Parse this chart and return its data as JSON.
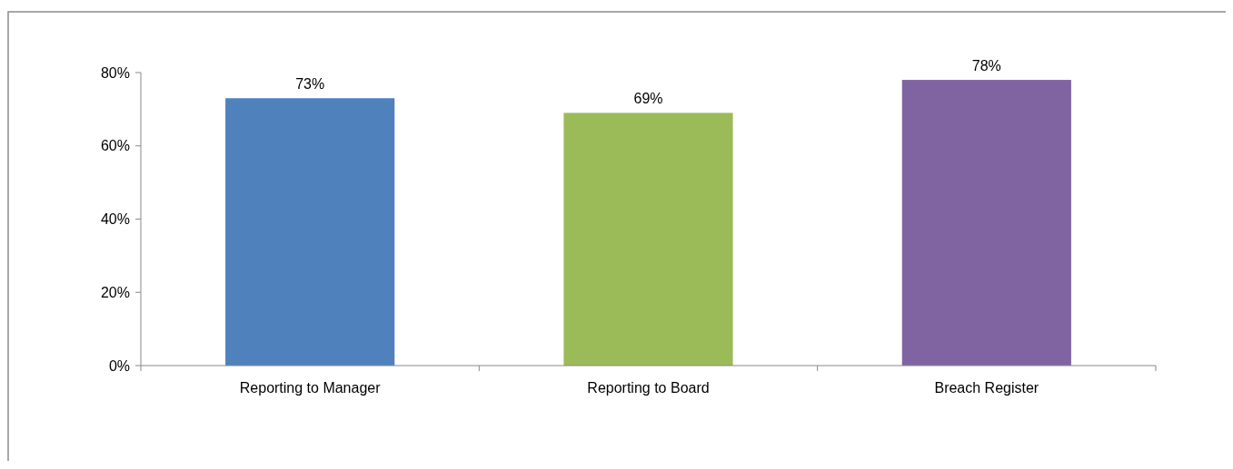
{
  "chart_data": {
    "type": "bar",
    "categories": [
      "Reporting to Manager",
      "Reporting to Board",
      "Breach Register"
    ],
    "values": [
      73,
      69,
      78
    ],
    "colors": [
      "#4f81bd",
      "#9bbb59",
      "#8064a2"
    ],
    "value_labels": [
      "73%",
      "69%",
      "78%"
    ],
    "ylim": [
      0,
      80
    ],
    "yticks": [
      {
        "value": 0,
        "label": "0%"
      },
      {
        "value": 20,
        "label": "20%"
      },
      {
        "value": 40,
        "label": "40%"
      },
      {
        "value": 60,
        "label": "60%"
      },
      {
        "value": 80,
        "label": "80%"
      }
    ],
    "grid": false
  }
}
